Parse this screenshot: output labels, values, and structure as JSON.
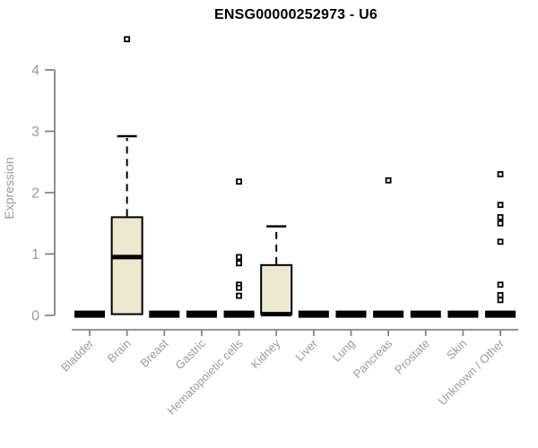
{
  "page": {
    "background": "#ffffff"
  },
  "chart_data": {
    "type": "boxplot",
    "title": "ENSG00000252973 - U6",
    "xlabel": "",
    "ylabel": "Expression",
    "ylim": [
      0,
      4
    ],
    "yticks": [
      0,
      1,
      2,
      3,
      4
    ],
    "grid": false,
    "legend": "none",
    "categories": [
      "Bladder",
      "Brain",
      "Breast",
      "Gastric",
      "Hematopoietic cells",
      "Kidney",
      "Liver",
      "Lung",
      "Pancreas",
      "Prostate",
      "Skin",
      "Unknown / Other"
    ],
    "boxes": [
      {
        "category": "Bladder",
        "low": 0.02,
        "q1": 0.02,
        "median": 0.02,
        "q3": 0.02,
        "high": 0.02,
        "outliers": []
      },
      {
        "category": "Brain",
        "low": 0.02,
        "q1": 0.02,
        "median": 0.95,
        "q3": 1.6,
        "high": 2.92,
        "outliers": [
          4.5
        ]
      },
      {
        "category": "Breast",
        "low": 0.02,
        "q1": 0.02,
        "median": 0.02,
        "q3": 0.02,
        "high": 0.02,
        "outliers": []
      },
      {
        "category": "Gastric",
        "low": 0.02,
        "q1": 0.02,
        "median": 0.02,
        "q3": 0.02,
        "high": 0.02,
        "outliers": []
      },
      {
        "category": "Hematopoietic cells",
        "low": 0.02,
        "q1": 0.02,
        "median": 0.02,
        "q3": 0.02,
        "high": 0.02,
        "outliers": [
          2.18,
          0.95,
          0.85,
          0.5,
          0.45,
          0.32
        ]
      },
      {
        "category": "Kidney",
        "low": 0.02,
        "q1": 0.02,
        "median": 0.02,
        "q3": 0.82,
        "high": 1.45,
        "outliers": []
      },
      {
        "category": "Liver",
        "low": 0.02,
        "q1": 0.02,
        "median": 0.02,
        "q3": 0.02,
        "high": 0.02,
        "outliers": []
      },
      {
        "category": "Lung",
        "low": 0.02,
        "q1": 0.02,
        "median": 0.02,
        "q3": 0.02,
        "high": 0.02,
        "outliers": []
      },
      {
        "category": "Pancreas",
        "low": 0.02,
        "q1": 0.02,
        "median": 0.02,
        "q3": 0.02,
        "high": 0.02,
        "outliers": [
          2.2
        ]
      },
      {
        "category": "Prostate",
        "low": 0.02,
        "q1": 0.02,
        "median": 0.02,
        "q3": 0.02,
        "high": 0.02,
        "outliers": []
      },
      {
        "category": "Skin",
        "low": 0.02,
        "q1": 0.02,
        "median": 0.02,
        "q3": 0.02,
        "high": 0.02,
        "outliers": []
      },
      {
        "category": "Unknown / Other",
        "low": 0.02,
        "q1": 0.02,
        "median": 0.02,
        "q3": 0.02,
        "high": 0.02,
        "outliers": [
          2.3,
          1.8,
          1.6,
          1.5,
          1.2,
          0.5,
          0.33,
          0.25
        ]
      }
    ],
    "colors": {
      "box_fill": "#ede8d0",
      "box_stroke": "#000000",
      "median": "#000000",
      "whisker": "#000000",
      "outlier_stroke": "#000000",
      "outlier_fill": "#ffffff",
      "axis_line": "#858585",
      "tick_label": "#9b9b9b",
      "title": "#000000",
      "background": "#ffffff"
    }
  }
}
